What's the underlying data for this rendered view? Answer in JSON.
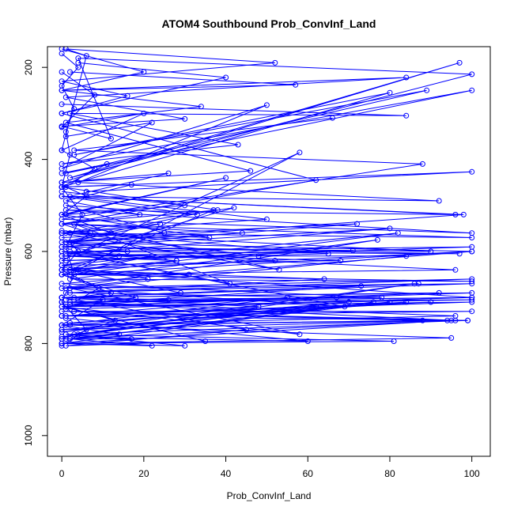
{
  "chart_data": {
    "type": "line",
    "title": "ATOM4 Southbound Prob_ConvInf_Land",
    "xlabel": "Prob_ConvInf_Land",
    "ylabel": "Pressure (mbar)",
    "xlim": [
      -3.5,
      104.5
    ],
    "ylim": [
      1045,
      155
    ],
    "y_reversed": true,
    "x_ticks": [
      0,
      20,
      40,
      60,
      80,
      100
    ],
    "y_ticks": [
      200,
      400,
      600,
      800,
      1000
    ],
    "x_tick_labels": [
      "0",
      "20",
      "40",
      "60",
      "80",
      "100"
    ],
    "y_tick_labels": [
      "200",
      "400",
      "600",
      "800",
      "1000"
    ],
    "grid": false,
    "legend": "none",
    "color": "#0000ff",
    "marker": "open-circle",
    "series": [
      {
        "x": [
          0,
          8,
          0,
          20,
          0,
          6,
          1,
          52,
          0,
          16,
          0,
          40,
          4
        ],
        "y": [
          210,
          260,
          330,
          300,
          380,
          175,
          160,
          190,
          230,
          262,
          300,
          222,
          190
        ]
      },
      {
        "x": [
          2,
          57,
          0,
          84,
          1,
          30,
          0,
          12,
          4,
          100,
          2,
          97,
          0
        ],
        "y": [
          210,
          238,
          250,
          222,
          265,
          312,
          328,
          355,
          180,
          215,
          440,
          190,
          450
        ]
      },
      {
        "x": [
          0,
          84,
          2,
          43,
          0,
          100,
          1,
          89,
          3,
          80,
          0,
          100,
          6
        ],
        "y": [
          280,
          305,
          300,
          368,
          410,
          250,
          430,
          250,
          390,
          255,
          460,
          427,
          470
        ]
      },
      {
        "x": [
          1,
          22,
          0,
          50,
          4,
          92,
          0,
          96,
          1,
          100,
          0,
          88,
          3,
          66
        ],
        "y": [
          350,
          320,
          420,
          282,
          450,
          490,
          480,
          520,
          510,
          560,
          530,
          410,
          380,
          310
        ]
      },
      {
        "x": [
          0,
          62,
          0,
          100,
          1,
          90,
          0,
          97,
          2,
          100,
          0,
          58,
          4
        ],
        "y": [
          300,
          445,
          540,
          570,
          560,
          600,
          590,
          605,
          600,
          590,
          620,
          385,
          640
        ]
      },
      {
        "x": [
          0,
          96,
          0,
          100,
          2,
          77,
          0,
          100,
          1,
          87,
          0,
          73,
          2
        ],
        "y": [
          600,
          640,
          650,
          665,
          660,
          575,
          680,
          660,
          690,
          670,
          700,
          675,
          715
        ]
      },
      {
        "x": [
          0,
          100,
          1,
          100,
          0,
          96,
          3,
          99,
          0,
          90,
          2,
          84,
          0
        ],
        "y": [
          700,
          690,
          720,
          705,
          710,
          750,
          730,
          750,
          740,
          710,
          755,
          710,
          770
        ]
      },
      {
        "x": [
          0,
          100,
          0,
          88,
          1,
          95,
          0,
          80,
          2,
          76,
          0,
          94,
          1
        ],
        "y": [
          740,
          730,
          730,
          750,
          760,
          750,
          770,
          710,
          790,
          710,
          800,
          750,
          790
        ]
      },
      {
        "x": [
          1,
          60,
          0,
          62,
          3,
          81,
          0,
          95,
          2,
          70,
          0,
          86,
          4
        ],
        "y": [
          745,
          795,
          785,
          720,
          780,
          795,
          800,
          788,
          760,
          710,
          775,
          670,
          780
        ]
      },
      {
        "x": [
          0,
          45,
          1,
          35,
          0,
          58,
          2,
          69,
          0,
          41,
          3,
          53,
          0
        ],
        "y": [
          700,
          770,
          805,
          795,
          720,
          780,
          680,
          720,
          600,
          670,
          540,
          640,
          560
        ]
      },
      {
        "x": [
          0,
          30,
          1,
          40,
          0,
          36,
          2,
          48,
          0,
          28,
          1,
          22,
          0
        ],
        "y": [
          470,
          500,
          520,
          440,
          520,
          570,
          560,
          610,
          610,
          620,
          640,
          610,
          650
        ]
      },
      {
        "x": [
          0,
          24,
          1,
          16,
          0,
          28,
          2,
          31,
          0,
          12,
          3,
          26,
          0
        ],
        "y": [
          560,
          540,
          580,
          600,
          600,
          620,
          640,
          650,
          650,
          690,
          700,
          705,
          720
        ]
      },
      {
        "x": [
          0,
          18,
          1,
          10,
          0,
          14,
          2,
          22,
          0,
          30,
          1,
          17,
          0
        ],
        "y": [
          650,
          700,
          720,
          705,
          760,
          780,
          790,
          805,
          800,
          805,
          780,
          790,
          790
        ]
      },
      {
        "x": [
          0,
          8,
          1,
          6,
          0,
          12,
          2,
          4,
          0,
          9,
          1,
          13,
          0
        ],
        "y": [
          380,
          420,
          460,
          480,
          520,
          560,
          580,
          600,
          640,
          680,
          720,
          750,
          790
        ]
      },
      {
        "x": [
          0,
          11,
          0,
          17,
          1,
          19,
          0,
          7,
          2,
          14,
          0,
          21,
          1
        ],
        "y": [
          430,
          410,
          460,
          455,
          490,
          520,
          540,
          560,
          590,
          610,
          630,
          660,
          680
        ]
      },
      {
        "x": [
          0,
          65,
          1,
          71,
          0,
          84,
          2,
          100,
          0,
          92,
          1,
          100,
          0
        ],
        "y": [
          555,
          605,
          620,
          598,
          610,
          610,
          680,
          670,
          700,
          690,
          720,
          710,
          740
        ]
      },
      {
        "x": [
          0,
          38,
          0,
          44,
          1,
          52,
          0,
          64,
          2,
          67,
          0,
          100,
          1
        ],
        "y": [
          460,
          510,
          540,
          560,
          580,
          620,
          640,
          660,
          690,
          700,
          710,
          700,
          725
        ]
      },
      {
        "x": [
          0,
          98,
          1,
          100,
          0,
          100,
          2,
          96,
          0,
          99,
          1
        ],
        "y": [
          480,
          520,
          580,
          600,
          640,
          700,
          710,
          740,
          760,
          750,
          780
        ]
      },
      {
        "x": [
          0,
          20,
          0,
          34,
          1,
          46,
          0,
          26,
          2,
          50,
          0,
          42,
          1
        ],
        "y": [
          160,
          210,
          250,
          285,
          320,
          425,
          450,
          430,
          480,
          530,
          560,
          505,
          610
        ]
      },
      {
        "x": [
          0,
          4,
          0,
          3,
          1,
          2,
          0,
          5,
          1,
          3,
          0,
          6,
          0
        ],
        "y": [
          170,
          200,
          240,
          290,
          340,
          390,
          460,
          520,
          590,
          650,
          710,
          770,
          805
        ]
      },
      {
        "x": [
          0,
          33,
          1,
          25,
          0,
          37,
          2,
          29,
          0,
          48,
          1,
          55,
          0
        ],
        "y": [
          480,
          520,
          500,
          560,
          580,
          510,
          640,
          690,
          700,
          720,
          740,
          700,
          760
        ]
      },
      {
        "x": [
          0,
          72,
          0,
          80,
          1,
          68,
          0,
          82,
          2,
          100,
          0,
          78,
          1
        ],
        "y": [
          570,
          540,
          590,
          550,
          605,
          620,
          630,
          560,
          650,
          600,
          670,
          700,
          705
        ]
      }
    ]
  }
}
